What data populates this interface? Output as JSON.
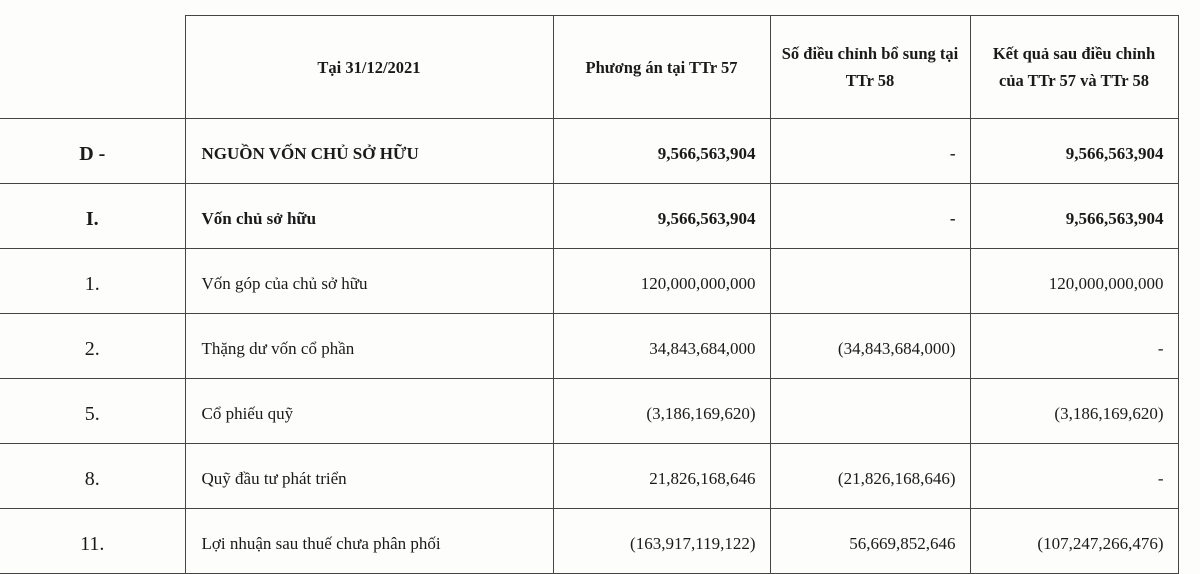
{
  "table": {
    "headers": [
      "",
      "Tại 31/12/2021",
      "Phương án tại TTr 57",
      "Số điều chỉnh bổ sung tại TTr 58",
      "Kết quả sau điều chỉnh của TTr 57 và TTr 58"
    ],
    "rows": [
      {
        "code": "D -",
        "label": "NGUỒN VỐN CHỦ SỞ HỮU",
        "ttr57": "9,566,563,904",
        "adj58": "-",
        "result": "9,566,563,904",
        "bold": true
      },
      {
        "code": "I.",
        "label": "Vốn chủ sở hữu",
        "ttr57": "9,566,563,904",
        "adj58": "-",
        "result": "9,566,563,904",
        "bold": true
      },
      {
        "code": "1.",
        "label": "Vốn góp của chủ sở hữu",
        "ttr57": "120,000,000,000",
        "adj58": "",
        "result": "120,000,000,000",
        "bold": false
      },
      {
        "code": "2.",
        "label": "Thặng dư vốn cổ phần",
        "ttr57": "34,843,684,000",
        "adj58": "(34,843,684,000)",
        "result": "-",
        "bold": false
      },
      {
        "code": "5.",
        "label": "Cổ phiếu quỹ",
        "ttr57": "(3,186,169,620)",
        "adj58": "",
        "result": "(3,186,169,620)",
        "bold": false
      },
      {
        "code": "8.",
        "label": "Quỹ đầu tư phát triển",
        "ttr57": "21,826,168,646",
        "adj58": "(21,826,168,646)",
        "result": "-",
        "bold": false
      },
      {
        "code": "11.",
        "label": "Lợi nhuận sau thuế chưa phân phối",
        "ttr57": "(163,917,119,122)",
        "adj58": "56,669,852,646",
        "result": "(107,247,266,476)",
        "bold": false
      }
    ]
  }
}
